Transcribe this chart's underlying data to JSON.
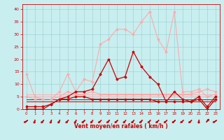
{
  "x": [
    0,
    1,
    2,
    3,
    4,
    5,
    6,
    7,
    8,
    9,
    10,
    11,
    12,
    13,
    14,
    15,
    16,
    17,
    18,
    19,
    20,
    21,
    22,
    23
  ],
  "series": [
    {
      "name": "rafales_light",
      "color": "#ffaaaa",
      "linewidth": 0.8,
      "marker": "D",
      "markersize": 1.5,
      "y": [
        14,
        5,
        4,
        4,
        7,
        14,
        7,
        12,
        11,
        26,
        28,
        32,
        32,
        30,
        35,
        39,
        28,
        23,
        39,
        7,
        7,
        8,
        5,
        6
      ]
    },
    {
      "name": "moy_light",
      "color": "#ffaaaa",
      "linewidth": 0.8,
      "marker": "D",
      "markersize": 1.5,
      "y": [
        5,
        4,
        4,
        4,
        5,
        7,
        6,
        6,
        7,
        6,
        6,
        6,
        6,
        6,
        6,
        6,
        6,
        6,
        6,
        6,
        6,
        7,
        8,
        7
      ]
    },
    {
      "name": "rafales_dark",
      "color": "#cc0000",
      "linewidth": 0.9,
      "marker": "D",
      "markersize": 1.5,
      "y": [
        1,
        1,
        1,
        2,
        4,
        5,
        7,
        7,
        8,
        14,
        20,
        12,
        13,
        23,
        17,
        13,
        10,
        3,
        7,
        4,
        3,
        5,
        1,
        5
      ]
    },
    {
      "name": "moy_dark",
      "color": "#cc0000",
      "linewidth": 0.9,
      "marker": "D",
      "markersize": 1.5,
      "y": [
        0,
        0,
        0,
        2,
        4,
        4,
        5,
        5,
        4,
        4,
        4,
        4,
        4,
        4,
        4,
        4,
        3,
        3,
        3,
        3,
        3,
        4,
        0,
        4
      ]
    },
    {
      "name": "const_light1",
      "color": "#ffaaaa",
      "linewidth": 0.7,
      "marker": null,
      "y": [
        5,
        5,
        5,
        5,
        5,
        5,
        5,
        5,
        5,
        5,
        5,
        5,
        5,
        5,
        5,
        5,
        5,
        5,
        5,
        5,
        5,
        5,
        5,
        5
      ]
    },
    {
      "name": "const_light2",
      "color": "#ffaaaa",
      "linewidth": 0.7,
      "marker": null,
      "y": [
        6,
        6,
        6,
        6,
        6,
        6,
        6,
        6,
        6,
        6,
        6,
        6,
        6,
        6,
        6,
        6,
        6,
        6,
        6,
        6,
        6,
        6,
        6,
        6
      ]
    },
    {
      "name": "const_dark1",
      "color": "#cc0000",
      "linewidth": 0.7,
      "marker": null,
      "y": [
        4,
        4,
        4,
        4,
        4,
        4,
        4,
        4,
        4,
        4,
        4,
        4,
        4,
        4,
        4,
        4,
        4,
        4,
        4,
        4,
        4,
        4,
        4,
        4
      ]
    },
    {
      "name": "const_dark2",
      "color": "#cc0000",
      "linewidth": 0.7,
      "marker": null,
      "y": [
        3,
        3,
        3,
        3,
        3,
        3,
        3,
        3,
        3,
        3,
        3,
        3,
        3,
        3,
        3,
        3,
        3,
        3,
        3,
        3,
        3,
        3,
        3,
        3
      ]
    }
  ],
  "arrow_angles": [
    225,
    190,
    210,
    195,
    200,
    210,
    200,
    215,
    205,
    215,
    210,
    215,
    210,
    210,
    210,
    210,
    215,
    215,
    215,
    215,
    215,
    185,
    30,
    225
  ],
  "xlabel": "Vent moyen/en rafales ( km/h )",
  "xlim": [
    -0.5,
    23.5
  ],
  "ylim": [
    0,
    42
  ],
  "yticks": [
    0,
    5,
    10,
    15,
    20,
    25,
    30,
    35,
    40
  ],
  "xticks": [
    0,
    1,
    2,
    3,
    4,
    5,
    6,
    7,
    8,
    9,
    10,
    11,
    12,
    13,
    14,
    15,
    16,
    17,
    18,
    19,
    20,
    21,
    22,
    23
  ],
  "background_color": "#c8eef0",
  "grid_color": "#99cccc",
  "axis_color": "#cc0000",
  "xlabel_color": "#cc0000",
  "tick_color": "#cc0000",
  "arrow_color": "#cc0000"
}
